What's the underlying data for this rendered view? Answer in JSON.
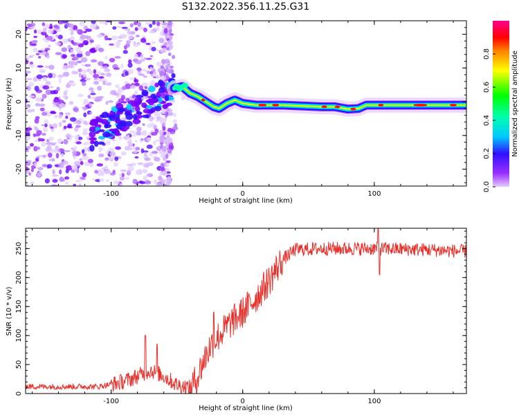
{
  "title": "S132.2022.356.11.25.G31",
  "chart_data": [
    {
      "type": "heatmap",
      "xlabel": "Height of straight line (km)",
      "ylabel": "Frequency (Hz)",
      "xlim": [
        -165,
        170
      ],
      "ylim": [
        -25,
        24
      ],
      "xticks": [
        -100,
        0,
        100
      ],
      "yticks": [
        -20,
        -10,
        0,
        10,
        20
      ],
      "ridge": [
        [
          -52,
          4
        ],
        [
          -46,
          4.5
        ],
        [
          -40,
          2.5
        ],
        [
          -34,
          1.5
        ],
        [
          -28,
          0
        ],
        [
          -22,
          -1.5
        ],
        [
          -18,
          -2
        ],
        [
          -12,
          -0.5
        ],
        [
          -6,
          0.5
        ],
        [
          0,
          -0.5
        ],
        [
          10,
          -1
        ],
        [
          30,
          -1
        ],
        [
          60,
          -1.5
        ],
        [
          70,
          -1.5
        ],
        [
          80,
          -2.2
        ],
        [
          88,
          -2
        ],
        [
          94,
          -1
        ],
        [
          100,
          -1
        ],
        [
          130,
          -1
        ],
        [
          170,
          -1
        ]
      ],
      "colorbar": {
        "label": "Normalized spectral amplitude",
        "range": [
          0.0,
          1.0
        ],
        "ticks": [
          0.0,
          0.2,
          0.4,
          0.6,
          0.8
        ]
      }
    },
    {
      "type": "line",
      "xlabel": "Height of straight line (km)",
      "ylabel": "SNR (10 * v/v)",
      "xlim": [
        -165,
        170
      ],
      "ylim": [
        0,
        285
      ],
      "xticks": [
        -100,
        0,
        100
      ],
      "yticks": [
        0,
        50,
        100,
        150,
        200,
        250
      ],
      "color": "#e8302a",
      "trend": [
        [
          -165,
          12
        ],
        [
          -110,
          12
        ],
        [
          -95,
          18
        ],
        [
          -85,
          25
        ],
        [
          -75,
          35
        ],
        [
          -70,
          40
        ],
        [
          -60,
          30
        ],
        [
          -50,
          15
        ],
        [
          -40,
          10
        ],
        [
          -35,
          25
        ],
        [
          -30,
          55
        ],
        [
          -25,
          80
        ],
        [
          -20,
          95
        ],
        [
          -10,
          120
        ],
        [
          0,
          140
        ],
        [
          10,
          165
        ],
        [
          20,
          195
        ],
        [
          30,
          230
        ],
        [
          40,
          248
        ],
        [
          60,
          250
        ],
        [
          100,
          250
        ],
        [
          140,
          248
        ],
        [
          170,
          245
        ]
      ],
      "noise_amplitude": 12,
      "spikes": [
        [
          -74,
          100
        ],
        [
          -65,
          85
        ],
        [
          -22,
          140
        ],
        [
          103,
          285
        ],
        [
          104,
          205
        ]
      ]
    }
  ]
}
